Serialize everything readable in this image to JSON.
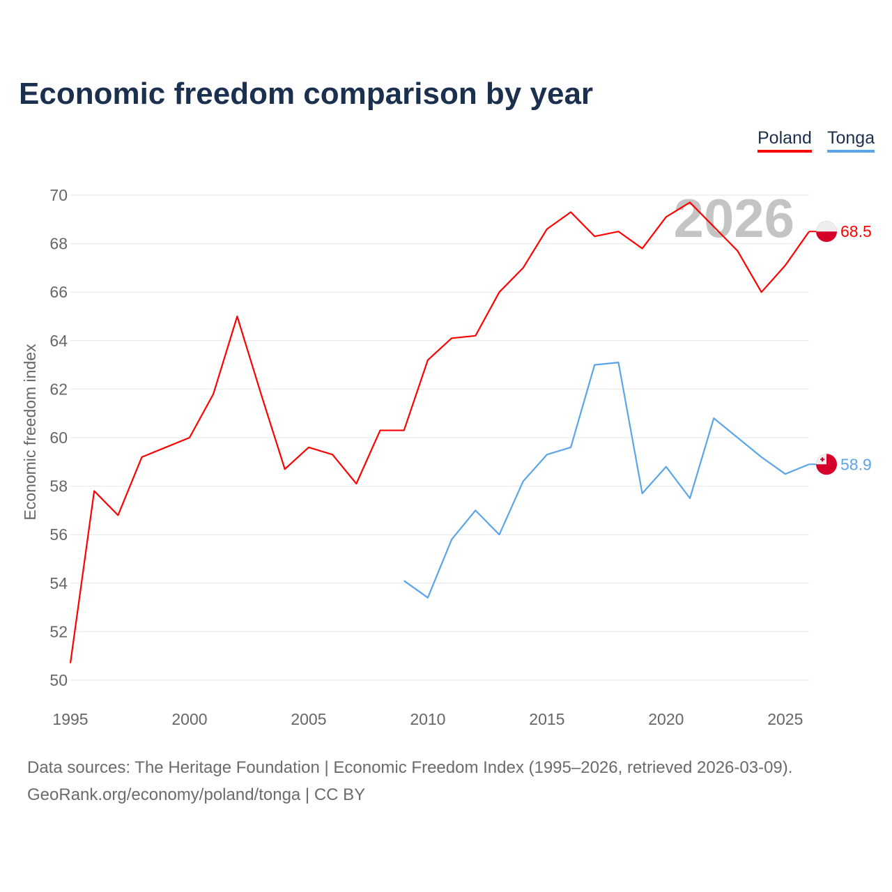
{
  "chart_data": {
    "type": "line",
    "title": "Economic freedom comparison by year",
    "ylabel": "Economic freedom index",
    "xlabel": "",
    "ylim": [
      50,
      70
    ],
    "xlim": [
      1995,
      2026
    ],
    "yticks": [
      50,
      52,
      54,
      56,
      58,
      60,
      62,
      64,
      66,
      68,
      70
    ],
    "xticks": [
      1995,
      2000,
      2005,
      2010,
      2015,
      2020,
      2025
    ],
    "grid": true,
    "legend_position": "top-right",
    "watermark_year": "2026",
    "series": [
      {
        "name": "Poland",
        "color": "#ff0000",
        "end_label": "68.5",
        "x": [
          1995,
          1996,
          1997,
          1998,
          1999,
          2000,
          2001,
          2002,
          2003,
          2004,
          2005,
          2006,
          2007,
          2008,
          2009,
          2010,
          2011,
          2012,
          2013,
          2014,
          2015,
          2016,
          2017,
          2018,
          2019,
          2020,
          2021,
          2022,
          2023,
          2024,
          2025,
          2026
        ],
        "values": [
          50.7,
          57.8,
          56.8,
          59.2,
          59.6,
          60.0,
          61.8,
          65.0,
          61.8,
          58.7,
          59.6,
          59.3,
          58.1,
          60.3,
          60.3,
          63.2,
          64.1,
          64.2,
          66.0,
          67.0,
          68.6,
          69.3,
          68.3,
          68.5,
          67.8,
          69.1,
          69.7,
          68.7,
          67.7,
          66.0,
          67.1,
          68.5
        ]
      },
      {
        "name": "Tonga",
        "color": "#5aa4e8",
        "end_label": "58.9",
        "x": [
          2009,
          2010,
          2011,
          2012,
          2013,
          2014,
          2015,
          2016,
          2017,
          2018,
          2019,
          2020,
          2021,
          2022,
          2023,
          2024,
          2025,
          2026
        ],
        "values": [
          54.1,
          53.4,
          55.8,
          57.0,
          56.0,
          58.2,
          59.3,
          59.6,
          63.0,
          63.1,
          57.7,
          58.8,
          57.5,
          60.8,
          60.0,
          59.2,
          58.5,
          58.9
        ]
      }
    ]
  },
  "footer": {
    "line1": "Data sources: The Heritage Foundation | Economic Freedom Index (1995–2026, retrieved 2026-03-09).",
    "line2": "GeoRank.org/economy/poland/tonga | CC BY"
  }
}
